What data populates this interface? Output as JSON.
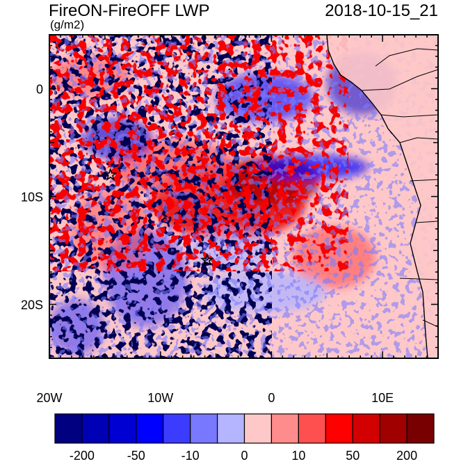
{
  "title": "FireON-FireOFF LWP",
  "timestamp": "2018-10-15_21",
  "units": "(g/m2)",
  "map": {
    "lon_range": [
      -20,
      15
    ],
    "lat_range": [
      -25,
      5
    ],
    "x_ticks": [
      {
        "lon": -20,
        "label": "20W"
      },
      {
        "lon": -10,
        "label": "10W"
      },
      {
        "lon": 0,
        "label": "0"
      },
      {
        "lon": 10,
        "label": "10E"
      }
    ],
    "y_ticks": [
      {
        "lat": 0,
        "label": "0"
      },
      {
        "lat": -10,
        "label": "10S"
      },
      {
        "lat": -20,
        "label": "20S"
      }
    ],
    "stars": [
      {
        "lon": -14.5,
        "lat": -8.0
      },
      {
        "lon": -5.8,
        "lat": -15.9
      }
    ]
  },
  "colorbar": {
    "colors": [
      "#000080",
      "#0000b4",
      "#0000d2",
      "#0000ff",
      "#3c3cff",
      "#7878ff",
      "#b4b4ff",
      "#ffc8c8",
      "#ff8c8c",
      "#ff5050",
      "#ff0000",
      "#d20000",
      "#a00000",
      "#780000"
    ],
    "labels": [
      {
        "boundary": 1,
        "text": "-200"
      },
      {
        "boundary": 3,
        "text": "-50"
      },
      {
        "boundary": 5,
        "text": "-10"
      },
      {
        "boundary": 7,
        "text": "0"
      },
      {
        "boundary": 9,
        "text": "10"
      },
      {
        "boundary": 11,
        "text": "50"
      },
      {
        "boundary": 13,
        "text": "200"
      }
    ]
  }
}
